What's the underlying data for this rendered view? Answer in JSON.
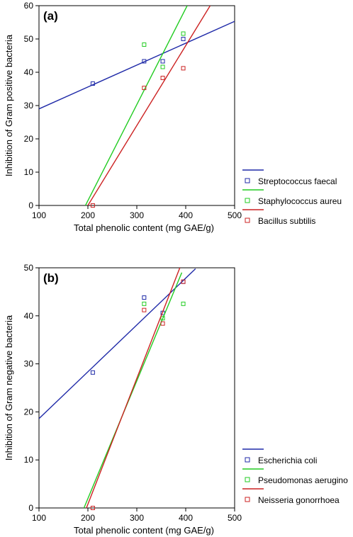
{
  "chart_data": [
    {
      "type": "scatter",
      "panel_label": "(a)",
      "xlabel": "Total phenolic content (mg GAE/g)",
      "ylabel": "Inhibition of Gram positive bacteria",
      "xlim": [
        100,
        500
      ],
      "ylim": [
        0,
        60
      ],
      "xticks": [
        100,
        200,
        300,
        400,
        500
      ],
      "yticks": [
        0,
        10,
        20,
        30,
        40,
        50,
        60
      ],
      "grid": false,
      "legend_placement": "lower-right outside",
      "series": [
        {
          "name": "Streptococcus faecal",
          "color": "#1f2aa8",
          "points": [
            [
              210,
              36.6
            ],
            [
              315,
              43.3
            ],
            [
              353,
              43.3
            ],
            [
              395,
              50
            ]
          ],
          "fit": [
            [
              100,
              29
            ],
            [
              500,
              55.3
            ]
          ]
        },
        {
          "name": "Staphylococcus aureu",
          "color": "#22cc22",
          "points": [
            [
              315,
              48.3
            ],
            [
              353,
              41.6
            ],
            [
              395,
              51.6
            ]
          ],
          "fit": [
            [
              195,
              0
            ],
            [
              403,
              60
            ]
          ]
        },
        {
          "name": "Bacillus subtilis",
          "color": "#cc2222",
          "points": [
            [
              210,
              0
            ],
            [
              315,
              35.3
            ],
            [
              353,
              38.3
            ],
            [
              395,
              41.2
            ]
          ],
          "fit": [
            [
              200,
              0
            ],
            [
              450,
              60
            ]
          ]
        }
      ]
    },
    {
      "type": "scatter",
      "panel_label": "(b)",
      "xlabel": "Total phenolic content (mg GAE/g)",
      "ylabel": "Inhibition of Gram negative bacteria",
      "xlim": [
        100,
        500
      ],
      "ylim": [
        0,
        50
      ],
      "xticks": [
        100,
        200,
        300,
        400,
        500
      ],
      "yticks": [
        0,
        10,
        20,
        30,
        40,
        50
      ],
      "grid": false,
      "legend_placement": "lower-right outside",
      "series": [
        {
          "name": "Escherichia coli",
          "color": "#1f2aa8",
          "points": [
            [
              210,
              28.2
            ],
            [
              315,
              43.8
            ],
            [
              353,
              40.6
            ],
            [
              395,
              47.1
            ]
          ],
          "fit": [
            [
              100,
              18.6
            ],
            [
              420,
              49.8
            ]
          ]
        },
        {
          "name": "Pseudomonas aerugino",
          "color": "#22cc22",
          "points": [
            [
              315,
              42.5
            ],
            [
              353,
              39.5
            ],
            [
              395,
              42.5
            ]
          ],
          "fit": [
            [
              192,
              0
            ],
            [
              392,
              49
            ]
          ]
        },
        {
          "name": "Neisseria gonorrhoea",
          "color": "#cc2222",
          "points": [
            [
              210,
              0
            ],
            [
              315,
              41.2
            ],
            [
              353,
              38.4
            ],
            [
              395,
              47.1
            ]
          ],
          "fit": [
            [
              197,
              0
            ],
            [
              388,
              50
            ]
          ]
        }
      ]
    }
  ]
}
